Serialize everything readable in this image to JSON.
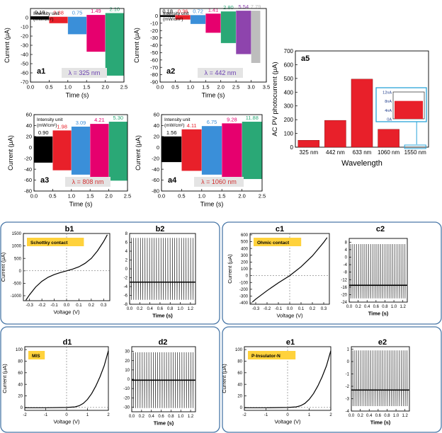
{
  "chart_data": [
    {
      "id": "a1",
      "type": "bar",
      "panel_label": "a1",
      "title": "",
      "xlabel": "Time (s)",
      "ylabel": "Current (μA)",
      "annotation": "λ = 325 nm",
      "intensity_label": [
        "Intensity unit",
        "(mW/cm²)"
      ],
      "xlim": [
        0.0,
        2.5
      ],
      "ylim": [
        -70,
        10
      ],
      "xticks": [
        "0.0",
        "0.5",
        "1.0",
        "1.5",
        "2.0",
        "2.5"
      ],
      "yticks": [
        "0",
        "-10",
        "-20",
        "-30",
        "-40",
        "-50",
        "-60",
        "-70"
      ],
      "series": [
        {
          "name": "0.19",
          "color": "#000000",
          "start": 0.0,
          "end": 0.5,
          "top": 1.5,
          "bottom": -2
        },
        {
          "name": "0.38",
          "color": "#e8202a",
          "start": 0.5,
          "end": 1.0,
          "top": 1,
          "bottom": -6
        },
        {
          "name": "0.75",
          "color": "#3a8fd9",
          "start": 1.0,
          "end": 1.5,
          "top": 1,
          "bottom": -18
        },
        {
          "name": "1.49",
          "color": "#e6006e",
          "start": 1.5,
          "end": 2.0,
          "top": 3,
          "bottom": -37
        },
        {
          "name": "2.10",
          "color": "#2aa876",
          "start": 2.0,
          "end": 2.5,
          "top": 5,
          "bottom": -63
        }
      ]
    },
    {
      "id": "a2",
      "type": "bar",
      "panel_label": "a2",
      "title": "",
      "xlabel": "Time (s)",
      "ylabel": "Current (μA)",
      "annotation": "λ = 442 nm",
      "intensity_label": [
        "Intensity unit",
        "(mW/cm²)"
      ],
      "xlim": [
        0.0,
        3.5
      ],
      "ylim": [
        -90,
        10
      ],
      "xticks": [
        "0.0",
        "0.5",
        "1.0",
        "1.5",
        "2.0",
        "2.5",
        "3.0",
        "3.5"
      ],
      "yticks": [
        "0",
        "-10",
        "-20",
        "-30",
        "-40",
        "-50",
        "-60",
        "-70",
        "-80",
        "-90"
      ],
      "series": [
        {
          "name": "0.18",
          "color": "#000000",
          "start": 0.0,
          "end": 0.5,
          "top": 1,
          "bottom": -1.5
        },
        {
          "name": "0.36",
          "color": "#e8202a",
          "start": 0.5,
          "end": 1.0,
          "top": 1,
          "bottom": -5
        },
        {
          "name": "0.72",
          "color": "#3a8fd9",
          "start": 1.0,
          "end": 1.5,
          "top": 1,
          "bottom": -11
        },
        {
          "name": "1.41",
          "color": "#e6006e",
          "start": 1.5,
          "end": 2.0,
          "top": 3,
          "bottom": -23
        },
        {
          "name": "2.80",
          "color": "#2aa876",
          "start": 2.0,
          "end": 2.5,
          "top": 6,
          "bottom": -37
        },
        {
          "name": "5.54",
          "color": "#8e44ad",
          "start": 2.5,
          "end": 3.0,
          "top": 7,
          "bottom": -52
        },
        {
          "name": "7.79",
          "color": "#bdbdbd",
          "start": 3.0,
          "end": 3.3,
          "top": 7,
          "bottom": -64
        }
      ]
    },
    {
      "id": "a3",
      "type": "bar",
      "panel_label": "a3",
      "title": "",
      "xlabel": "Time (s)",
      "ylabel": "Current (μA)",
      "annotation": "λ = 808 nm",
      "intensity_label": [
        "Intensity unit",
        "(mW/cm²)"
      ],
      "xlim": [
        0.0,
        2.5
      ],
      "ylim": [
        -80,
        60
      ],
      "xticks": [
        "0.0",
        "0.5",
        "1.0",
        "1.5",
        "2.0",
        "2.5"
      ],
      "yticks": [
        "60",
        "40",
        "20",
        "0",
        "-20",
        "-40",
        "-60",
        "-80"
      ],
      "series": [
        {
          "name": "0.90",
          "color": "#000000",
          "start": 0.0,
          "end": 0.5,
          "top": 20,
          "bottom": -28
        },
        {
          "name": "1.98",
          "color": "#e8202a",
          "start": 0.5,
          "end": 1.0,
          "top": 31,
          "bottom": -42
        },
        {
          "name": "3.09",
          "color": "#3a8fd9",
          "start": 1.0,
          "end": 1.5,
          "top": 38,
          "bottom": -50
        },
        {
          "name": "4.21",
          "color": "#e6006e",
          "start": 1.5,
          "end": 2.0,
          "top": 43,
          "bottom": -57
        },
        {
          "name": "5.30",
          "color": "#2aa876",
          "start": 2.0,
          "end": 2.5,
          "top": 47,
          "bottom": -61
        }
      ]
    },
    {
      "id": "a4",
      "type": "bar",
      "panel_label": "a4",
      "title": "",
      "xlabel": "Time (s)",
      "ylabel": "Current (μA)",
      "annotation": "λ = 1060 nm",
      "intensity_label": [
        "Intensity unit",
        "(mW/cm²)"
      ],
      "xlim": [
        0.0,
        2.5
      ],
      "ylim": [
        -80,
        60
      ],
      "xticks": [
        "0.0",
        "0.5",
        "1.0",
        "1.5",
        "2.0",
        "2.5"
      ],
      "yticks": [
        "60",
        "40",
        "20",
        "0",
        "-20",
        "-40",
        "-60",
        "-80"
      ],
      "series": [
        {
          "name": "1.56",
          "color": "#000000",
          "start": 0.0,
          "end": 0.5,
          "top": 20,
          "bottom": -27
        },
        {
          "name": "4.11",
          "color": "#e8202a",
          "start": 0.5,
          "end": 1.0,
          "top": 33,
          "bottom": -43
        },
        {
          "name": "6.75",
          "color": "#3a8fd9",
          "start": 1.0,
          "end": 1.5,
          "top": 39,
          "bottom": -50
        },
        {
          "name": "9.28",
          "color": "#e6006e",
          "start": 1.5,
          "end": 2.0,
          "top": 44,
          "bottom": -55
        },
        {
          "name": "11.88",
          "color": "#2aa876",
          "start": 2.0,
          "end": 2.5,
          "top": 47,
          "bottom": -58
        }
      ]
    },
    {
      "id": "a5",
      "type": "bar",
      "panel_label": "a5",
      "title": "",
      "xlabel": "Wavelength",
      "ylabel": "AC PV photocurrent (μA)",
      "categories": [
        "325 nm",
        "442 nm",
        "633 nm",
        "1060 nm",
        "1550 nm"
      ],
      "values": [
        50,
        195,
        495,
        130,
        0.008
      ],
      "bar_color": "#e8202a",
      "ylim": [
        0,
        700
      ],
      "yticks": [
        "0",
        "100",
        "200",
        "300",
        "400",
        "500",
        "600",
        "700"
      ],
      "inset": {
        "ytick_labels": [
          "12nA",
          "8nA",
          "4nA",
          "0A"
        ],
        "value": 8,
        "ylim": [
          0,
          12
        ]
      }
    },
    {
      "id": "b1",
      "type": "line",
      "panel_label": "b1",
      "tag": "Schottky contact",
      "xlabel": "Voltage (V)",
      "ylabel": "Current (μA)",
      "xlim": [
        -0.35,
        0.35
      ],
      "ylim": [
        -1200,
        1500
      ],
      "xticks": [
        "-0.3",
        "-0.2",
        "-0.1",
        "0.0",
        "0.1",
        "0.2",
        "0.3"
      ],
      "yticks": [
        "1500",
        "1000",
        "500",
        "0",
        "-500",
        "-1000"
      ],
      "x": [
        -0.33,
        -0.3,
        -0.25,
        -0.2,
        -0.15,
        -0.1,
        -0.05,
        0,
        0.05,
        0.1,
        0.15,
        0.2,
        0.25,
        0.3,
        0.33
      ],
      "y": [
        -1180,
        -960,
        -650,
        -420,
        -260,
        -150,
        -70,
        0,
        70,
        160,
        300,
        500,
        800,
        1180,
        1450
      ]
    },
    {
      "id": "b2",
      "type": "line",
      "panel_label": "b2",
      "xlabel": "Time (s)",
      "ylabel": "",
      "xlim": [
        0.0,
        1.3
      ],
      "ylim": [
        -8,
        8
      ],
      "xticks": [
        "0.0",
        "0.2",
        "0.4",
        "0.6",
        "0.8",
        "1.0",
        "1.2"
      ],
      "yticks": [
        "8",
        "6",
        "4",
        "2",
        "0",
        "-2",
        "-4",
        "-6",
        "-8"
      ],
      "pulse": {
        "count": 28,
        "baseline": -3,
        "high": 7,
        "low": -7
      }
    },
    {
      "id": "c1",
      "type": "line",
      "panel_label": "c1",
      "tag": "Ohmic contact",
      "xlabel": "Voltage (V)",
      "ylabel": "Current (μA)",
      "xlim": [
        -0.35,
        0.35
      ],
      "ylim": [
        -420,
        620
      ],
      "xticks": [
        "-0.3",
        "-0.2",
        "-0.1",
        "0.0",
        "0.1",
        "0.2",
        "0.3"
      ],
      "yticks": [
        "600",
        "500",
        "400",
        "300",
        "200",
        "100",
        "0",
        "-100",
        "-200",
        "-300",
        "-400"
      ],
      "x": [
        -0.33,
        -0.3,
        -0.2,
        -0.1,
        0,
        0.1,
        0.2,
        0.3,
        0.33
      ],
      "y": [
        -390,
        -345,
        -220,
        -105,
        0,
        130,
        290,
        490,
        560
      ]
    },
    {
      "id": "c2",
      "type": "line",
      "panel_label": "c2",
      "xlabel": "Time (s)",
      "ylabel": "",
      "xlim": [
        0.0,
        1.3
      ],
      "ylim": [
        -24,
        10
      ],
      "xticks": [
        "0.0",
        "0.2",
        "0.4",
        "0.6",
        "0.8",
        "1.0",
        "1.2"
      ],
      "yticks": [
        "8",
        "4",
        "0",
        "-4",
        "-8",
        "-12",
        "-16",
        "-20",
        "-24"
      ],
      "pulse": {
        "count": 28,
        "baseline": -15,
        "high": 7,
        "low": -22
      }
    },
    {
      "id": "d1",
      "type": "line",
      "panel_label": "d1",
      "tag": "MIS",
      "xlabel": "Voltage (V)",
      "ylabel": "Current (μA)",
      "xlim": [
        -2,
        2
      ],
      "ylim": [
        -5,
        105
      ],
      "xticks": [
        "-2",
        "-1",
        "0",
        "1",
        "2"
      ],
      "yticks": [
        "100",
        "80",
        "60",
        "40",
        "20",
        "0"
      ],
      "x": [
        -2,
        -1,
        0,
        0.4,
        0.6,
        0.8,
        1.0,
        1.2,
        1.4,
        1.6,
        1.8,
        2.0
      ],
      "y": [
        -0.5,
        -0.5,
        0,
        1,
        3,
        7,
        14,
        24,
        37,
        53,
        72,
        98
      ]
    },
    {
      "id": "d2",
      "type": "line",
      "panel_label": "d2",
      "xlabel": "Time (s)",
      "ylabel": "",
      "xlim": [
        0.0,
        1.3
      ],
      "ylim": [
        -35,
        35
      ],
      "xticks": [
        "0.0",
        "0.2",
        "0.4",
        "0.6",
        "0.8",
        "1.0",
        "1.2"
      ],
      "yticks": [
        "30",
        "20",
        "10",
        "0",
        "-10",
        "-20",
        "-30"
      ],
      "pulse": {
        "count": 28,
        "baseline": -1,
        "high": 29,
        "low": -31
      }
    },
    {
      "id": "e1",
      "type": "line",
      "panel_label": "e1",
      "tag": "P-Insulator-N",
      "xlabel": "Voltage (V)",
      "ylabel": "Current (μA)",
      "xlim": [
        -2,
        2
      ],
      "ylim": [
        -5,
        105
      ],
      "xticks": [
        "-2",
        "-1",
        "0",
        "1",
        "2"
      ],
      "yticks": [
        "100",
        "80",
        "60",
        "40",
        "20",
        "0"
      ],
      "x": [
        -2,
        -1,
        0,
        0.4,
        0.6,
        0.8,
        1.0,
        1.2,
        1.4,
        1.6,
        1.8,
        2.0
      ],
      "y": [
        -0.5,
        -0.5,
        0,
        1,
        3,
        7,
        14,
        24,
        37,
        53,
        72,
        98
      ]
    },
    {
      "id": "e2",
      "type": "line",
      "panel_label": "e2",
      "xlabel": "Time (s)",
      "ylabel": "",
      "xlim": [
        0.0,
        1.3
      ],
      "ylim": [
        -4,
        1.2
      ],
      "xticks": [
        "0.0",
        "0.2",
        "0.4",
        "0.6",
        "0.8",
        "1.0",
        "1.2"
      ],
      "yticks": [
        "1",
        "0",
        "-1",
        "-2",
        "-3",
        "-4"
      ],
      "pulse": {
        "count": 28,
        "baseline": -2.3,
        "high": 0.9,
        "low": -3.6
      }
    }
  ]
}
